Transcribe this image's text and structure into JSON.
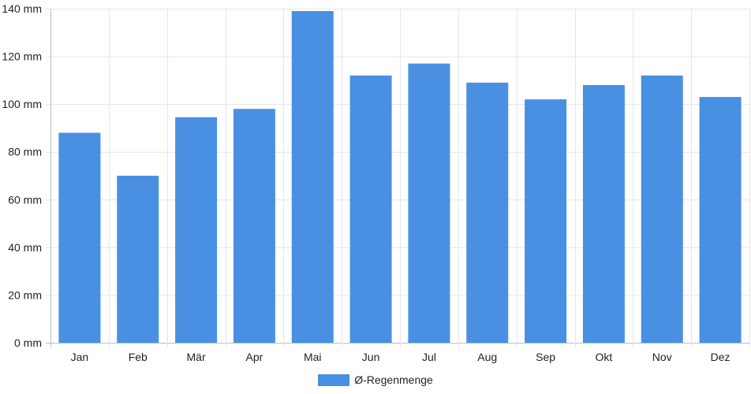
{
  "chart_data": {
    "type": "bar",
    "categories": [
      "Jan",
      "Feb",
      "Mär",
      "Apr",
      "Mai",
      "Jun",
      "Jul",
      "Aug",
      "Sep",
      "Okt",
      "Nov",
      "Dez"
    ],
    "series": [
      {
        "name": "Ø-Regenmenge",
        "values": [
          88,
          70,
          94.5,
          98,
          139,
          112,
          117,
          109,
          102,
          108,
          112,
          103
        ]
      }
    ],
    "y_unit": " mm",
    "ylim": [
      0,
      140
    ],
    "y_ticks": [
      0,
      20,
      40,
      60,
      80,
      100,
      120,
      140
    ],
    "grid": true,
    "legend_position": "bottom",
    "colors": {
      "bar": "#4a90e2",
      "grid": "#e6e6e6",
      "axis": "#bfbfbf"
    }
  },
  "legend": {
    "label": "Ø-Regenmenge"
  }
}
